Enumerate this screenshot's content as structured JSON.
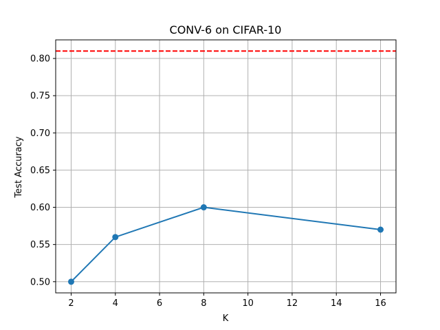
{
  "chart_data": {
    "type": "line",
    "title": "CONV-6 on CIFAR-10",
    "xlabel": "K",
    "ylabel": "Test Accuracy",
    "x": [
      2,
      4,
      8,
      16
    ],
    "series": [
      {
        "values": [
          0.5,
          0.56,
          0.6,
          0.57
        ],
        "color": "#1f77b4",
        "marker": "circle"
      }
    ],
    "reference_line": {
      "y": 0.81,
      "color": "#ff0000",
      "style": "dashed"
    },
    "xlim": [
      1.3,
      16.7
    ],
    "ylim": [
      0.485,
      0.825
    ],
    "xticks": [
      2,
      4,
      6,
      8,
      10,
      12,
      14,
      16
    ],
    "yticks": [
      0.5,
      0.55,
      0.6,
      0.65,
      0.7,
      0.75,
      0.8
    ],
    "grid": true
  }
}
